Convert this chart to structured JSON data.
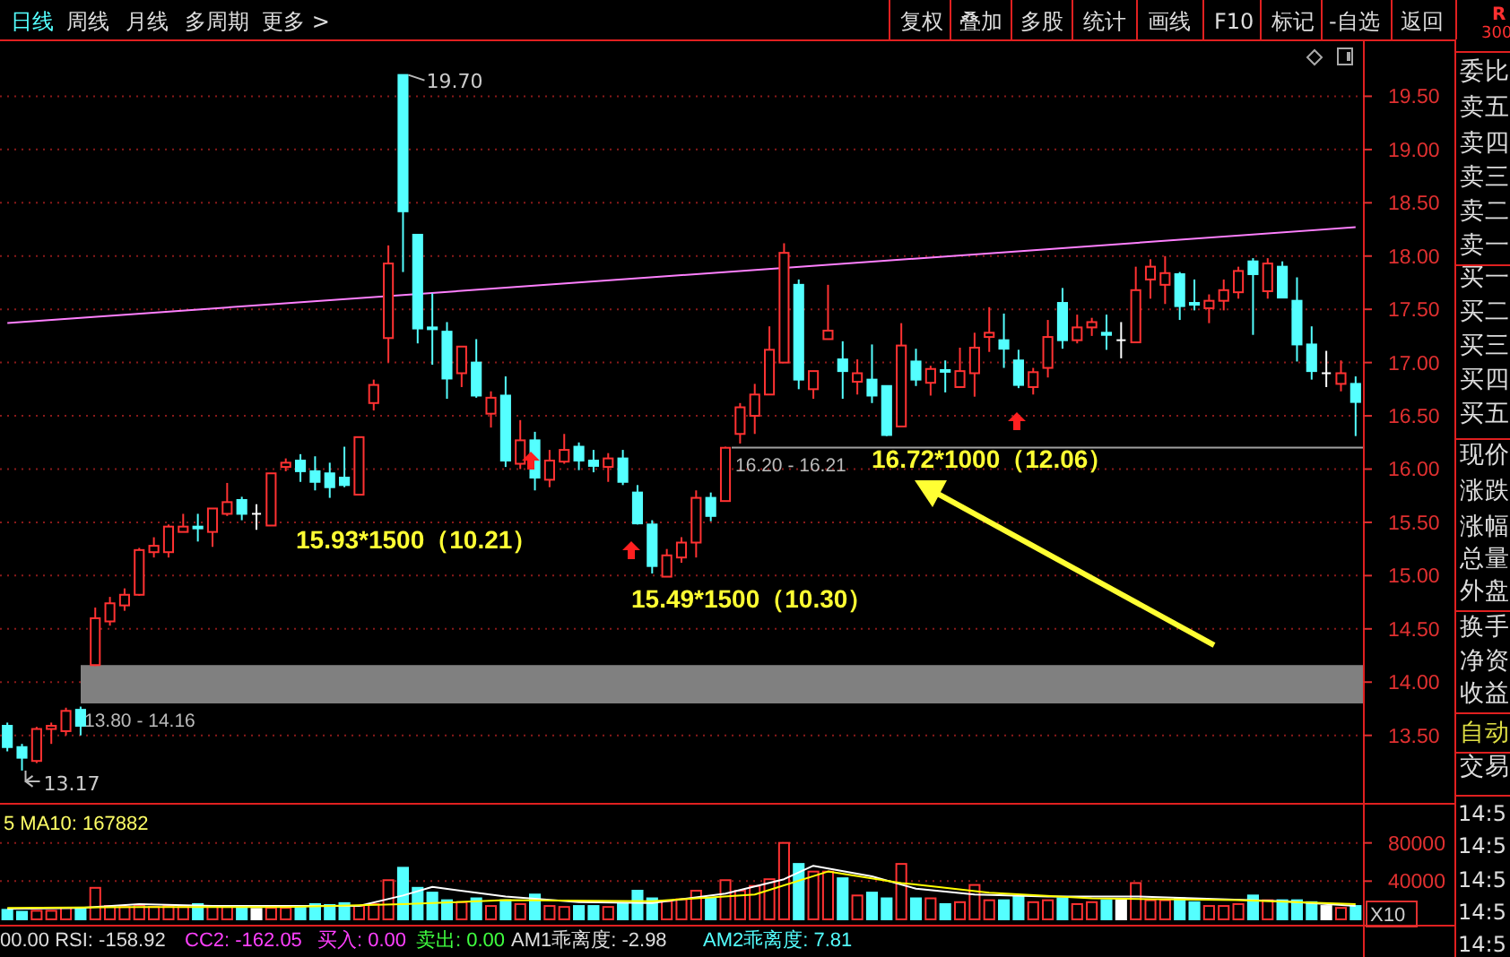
{
  "chart_data": [
    {
      "type": "candlestick",
      "categories": [
        null,
        null,
        null,
        null,
        null,
        null,
        null,
        null,
        null,
        null,
        null,
        null,
        null,
        null,
        null,
        null,
        null,
        null,
        null,
        null,
        null,
        null,
        null,
        null,
        null,
        null,
        null,
        null,
        null,
        null,
        null,
        null,
        null,
        null,
        null,
        null,
        null,
        null,
        null,
        null,
        null,
        null,
        null,
        null,
        null,
        null,
        null,
        null,
        null,
        null,
        null,
        null,
        null,
        null,
        null,
        null,
        null,
        null,
        null,
        null,
        null,
        null,
        null,
        null,
        null,
        null,
        null,
        null,
        null,
        null,
        null,
        null,
        null,
        null,
        null,
        null,
        null,
        null,
        null,
        null,
        null,
        null,
        null,
        null,
        null,
        null,
        null,
        null,
        null,
        null,
        null,
        null,
        null
      ],
      "ohlc": [
        [
          13.59,
          13.62,
          13.35,
          13.39
        ],
        [
          13.39,
          13.42,
          13.17,
          13.29
        ],
        [
          13.26,
          13.58,
          13.24,
          13.56
        ],
        [
          13.56,
          13.62,
          13.42,
          13.59
        ],
        [
          13.54,
          13.76,
          13.5,
          13.73
        ],
        [
          13.74,
          13.77,
          13.5,
          13.59
        ],
        [
          14.16,
          14.7,
          14.15,
          14.6
        ],
        [
          14.57,
          14.8,
          14.53,
          14.74
        ],
        [
          14.72,
          14.88,
          14.67,
          14.82
        ],
        [
          14.82,
          15.26,
          14.81,
          15.24
        ],
        [
          15.22,
          15.36,
          15.17,
          15.28
        ],
        [
          15.22,
          15.48,
          15.17,
          15.46
        ],
        [
          15.41,
          15.58,
          15.41,
          15.46
        ],
        [
          15.46,
          15.58,
          15.32,
          15.45
        ],
        [
          15.41,
          15.63,
          15.27,
          15.63
        ],
        [
          15.58,
          15.87,
          15.56,
          15.69
        ],
        [
          15.71,
          15.74,
          15.52,
          15.58
        ],
        [
          15.58,
          15.67,
          15.43,
          15.58
        ],
        [
          15.47,
          15.96,
          15.47,
          15.96
        ],
        [
          16.02,
          16.1,
          15.98,
          16.06
        ],
        [
          16.08,
          16.14,
          15.88,
          15.98
        ],
        [
          15.98,
          16.12,
          15.8,
          15.88
        ],
        [
          15.96,
          16.06,
          15.73,
          15.83
        ],
        [
          15.92,
          16.21,
          15.83,
          15.85
        ],
        [
          15.76,
          16.3,
          15.76,
          16.3
        ],
        [
          16.62,
          16.84,
          16.55,
          16.79
        ],
        [
          17.23,
          18.1,
          17.0,
          17.93
        ],
        [
          19.7,
          19.7,
          17.85,
          18.42
        ],
        [
          18.2,
          18.2,
          17.18,
          17.32
        ],
        [
          17.33,
          17.65,
          16.98,
          17.32
        ],
        [
          17.29,
          17.38,
          16.66,
          16.85
        ],
        [
          16.9,
          17.15,
          16.77,
          17.15
        ],
        [
          17.0,
          17.22,
          16.67,
          16.69
        ],
        [
          16.52,
          16.73,
          16.39,
          16.67
        ],
        [
          16.69,
          16.87,
          16.02,
          16.08
        ],
        [
          16.05,
          16.46,
          16.0,
          16.27
        ],
        [
          16.27,
          16.35,
          15.8,
          15.92
        ],
        [
          15.9,
          16.18,
          15.83,
          16.08
        ],
        [
          16.07,
          16.33,
          16.05,
          16.18
        ],
        [
          16.21,
          16.25,
          15.99,
          16.08
        ],
        [
          16.08,
          16.18,
          15.97,
          16.03
        ],
        [
          16.02,
          16.15,
          15.88,
          16.1
        ],
        [
          16.1,
          16.18,
          15.85,
          15.88
        ],
        [
          15.78,
          15.85,
          15.48,
          15.49
        ],
        [
          15.48,
          15.52,
          15.02,
          15.09
        ],
        [
          14.99,
          15.25,
          14.99,
          15.19
        ],
        [
          15.17,
          15.36,
          15.12,
          15.31
        ],
        [
          15.31,
          15.8,
          15.17,
          15.73
        ],
        [
          15.73,
          15.78,
          15.51,
          15.56
        ],
        [
          15.7,
          16.21,
          15.7,
          16.2
        ],
        [
          16.33,
          16.62,
          16.24,
          16.58
        ],
        [
          16.5,
          16.8,
          16.33,
          16.7
        ],
        [
          16.7,
          17.34,
          16.7,
          17.12
        ],
        [
          17.0,
          18.12,
          17.0,
          18.03
        ],
        [
          17.73,
          17.78,
          16.75,
          16.84
        ],
        [
          16.75,
          16.92,
          16.66,
          16.92
        ],
        [
          17.22,
          17.73,
          17.22,
          17.3
        ],
        [
          17.03,
          17.2,
          16.66,
          16.92
        ],
        [
          16.82,
          17.03,
          16.7,
          16.9
        ],
        [
          16.84,
          17.17,
          16.62,
          16.69
        ],
        [
          16.78,
          16.78,
          16.31,
          16.32
        ],
        [
          16.4,
          17.37,
          16.4,
          17.16
        ],
        [
          17.01,
          17.13,
          16.78,
          16.84
        ],
        [
          16.81,
          16.97,
          16.69,
          16.94
        ],
        [
          16.93,
          17.02,
          16.72,
          16.92
        ],
        [
          16.77,
          17.14,
          16.77,
          16.92
        ],
        [
          16.9,
          17.28,
          16.68,
          17.14
        ],
        [
          17.24,
          17.52,
          17.1,
          17.28
        ],
        [
          17.21,
          17.46,
          16.95,
          17.13
        ],
        [
          17.02,
          17.12,
          16.76,
          16.79
        ],
        [
          16.77,
          16.95,
          16.7,
          16.91
        ],
        [
          16.95,
          17.4,
          16.86,
          17.24
        ],
        [
          17.56,
          17.7,
          17.13,
          17.21
        ],
        [
          17.21,
          17.45,
          17.18,
          17.33
        ],
        [
          17.33,
          17.42,
          17.25,
          17.38
        ],
        [
          17.28,
          17.45,
          17.12,
          17.26
        ],
        [
          17.21,
          17.38,
          17.04,
          17.21
        ],
        [
          17.19,
          17.9,
          17.19,
          17.68
        ],
        [
          17.78,
          17.97,
          17.6,
          17.9
        ],
        [
          17.73,
          18.0,
          17.55,
          17.84
        ],
        [
          17.83,
          17.85,
          17.4,
          17.53
        ],
        [
          17.56,
          17.78,
          17.49,
          17.55
        ],
        [
          17.51,
          17.64,
          17.37,
          17.58
        ],
        [
          17.58,
          17.78,
          17.49,
          17.68
        ],
        [
          17.66,
          17.9,
          17.6,
          17.86
        ],
        [
          17.95,
          17.98,
          17.26,
          17.83
        ],
        [
          17.67,
          17.98,
          17.6,
          17.93
        ],
        [
          17.9,
          17.95,
          17.61,
          17.61
        ],
        [
          17.58,
          17.8,
          17.01,
          17.17
        ],
        [
          17.17,
          17.34,
          16.84,
          16.92
        ],
        [
          16.9,
          17.11,
          16.77,
          16.9
        ],
        [
          16.8,
          17.02,
          16.73,
          16.9
        ],
        [
          16.8,
          16.87,
          16.31,
          16.63
        ]
      ],
      "colors": [
        "#54ffff",
        "#54ffff",
        "#ff3232",
        "#ff3232",
        "#ff3232",
        "#54ffff",
        "#ff3232",
        "#ff3232",
        "#ff3232",
        "#ff3232",
        "#ff3232",
        "#ff3232",
        "#ff3232",
        "#54ffff",
        "#ff3232",
        "#ff3232",
        "#54ffff",
        "#ffffff",
        "#ff3232",
        "#ff3232",
        "#54ffff",
        "#54ffff",
        "#54ffff",
        "#54ffff",
        "#ff3232",
        "#ff3232",
        "#ff3232",
        "#54ffff",
        "#54ffff",
        "#54ffff",
        "#54ffff",
        "#ff3232",
        "#54ffff",
        "#ff3232",
        "#54ffff",
        "#ff3232",
        "#54ffff",
        "#ff3232",
        "#ff3232",
        "#54ffff",
        "#54ffff",
        "#ff3232",
        "#54ffff",
        "#54ffff",
        "#54ffff",
        "#ff3232",
        "#ff3232",
        "#ff3232",
        "#54ffff",
        "#ff3232",
        "#ff3232",
        "#ff3232",
        "#ff3232",
        "#ff3232",
        "#54ffff",
        "#ff3232",
        "#ff3232",
        "#54ffff",
        "#ff3232",
        "#54ffff",
        "#54ffff",
        "#ff3232",
        "#54ffff",
        "#ff3232",
        "#54ffff",
        "#ff3232",
        "#ff3232",
        "#ff3232",
        "#54ffff",
        "#54ffff",
        "#ff3232",
        "#ff3232",
        "#54ffff",
        "#ff3232",
        "#ff3232",
        "#54ffff",
        "#ffffff",
        "#ff3232",
        "#ff3232",
        "#ff3232",
        "#54ffff",
        "#54ffff",
        "#ff3232",
        "#ff3232",
        "#ff3232",
        "#54ffff",
        "#ff3232",
        "#54ffff",
        "#54ffff",
        "#54ffff",
        "#ffffff",
        "#ff3232",
        "#54ffff"
      ],
      "series": [
        {
          "type": "line",
          "color": "#ff80ff",
          "values": [
            17.37,
            null,
            null,
            null,
            null,
            null,
            null,
            null,
            null,
            null,
            null,
            null,
            null,
            null,
            null,
            null,
            null,
            null,
            null,
            null,
            null,
            null,
            null,
            null,
            null,
            null,
            null,
            null,
            null,
            null,
            null,
            null,
            null,
            null,
            null,
            null,
            null,
            null,
            null,
            null,
            null,
            null,
            null,
            null,
            null,
            null,
            null,
            null,
            null,
            null,
            null,
            null,
            null,
            null,
            null,
            null,
            null,
            null,
            null,
            null,
            null,
            null,
            null,
            null,
            null,
            null,
            null,
            null,
            null,
            null,
            null,
            null,
            null,
            null,
            null,
            null,
            null,
            null,
            null,
            null,
            null,
            null,
            null,
            null,
            null,
            null,
            null,
            null,
            null,
            null,
            null,
            null,
            18.27
          ]
        }
      ],
      "ylim": [
        12.9,
        20.0
      ],
      "yticks": [
        {
          "value": 13.5,
          "label": "13.50"
        },
        {
          "value": 14.0,
          "label": "14.00"
        },
        {
          "value": 14.5,
          "label": "14.50"
        },
        {
          "value": 15.0,
          "label": "15.00"
        },
        {
          "value": 15.5,
          "label": "15.50"
        },
        {
          "value": 16.0,
          "label": "16.00"
        },
        {
          "value": 16.5,
          "label": "16.50"
        },
        {
          "value": 17.0,
          "label": "17.00"
        },
        {
          "value": 17.5,
          "label": "17.50"
        },
        {
          "value": 18.0,
          "label": "18.00"
        },
        {
          "value": 18.5,
          "label": "18.50"
        },
        {
          "value": 19.0,
          "label": "19.00"
        },
        {
          "value": 19.5,
          "label": "19.50"
        }
      ],
      "grid": "y",
      "bands": [
        {
          "axis": "y",
          "from": 13.8,
          "to": 14.16,
          "label": "13.80 - 14.16",
          "color": "#808080"
        },
        {
          "axis": "y",
          "from": 16.2,
          "to": 16.21,
          "label": "16.20 - 16.21",
          "color": "#a0a0a0"
        }
      ],
      "annotations": [
        "19.70",
        "13.17",
        "15.93*1500（10.21）",
        "15.49*1500（10.30）",
        "16.72*1000（12.06）"
      ]
    },
    {
      "type": "bar",
      "categories": [
        null,
        null,
        null,
        null,
        null,
        null,
        null,
        null,
        null,
        null,
        null,
        null,
        null,
        null,
        null,
        null,
        null,
        null,
        null,
        null,
        null,
        null,
        null,
        null,
        null,
        null,
        null,
        null,
        null,
        null,
        null,
        null,
        null,
        null,
        null,
        null,
        null,
        null,
        null,
        null,
        null,
        null,
        null,
        null,
        null,
        null,
        null,
        null,
        null,
        null,
        null,
        null,
        null,
        null,
        null,
        null,
        null,
        null,
        null,
        null,
        null,
        null,
        null,
        null,
        null,
        null,
        null,
        null,
        null,
        null,
        null,
        null,
        null,
        null,
        null,
        null,
        null,
        null,
        null,
        null,
        null,
        null,
        null,
        null,
        null,
        null,
        null,
        null,
        null,
        null,
        null,
        null,
        null
      ],
      "series": [
        {
          "type": "bar",
          "colors": [
            "#54ffff",
            "#54ffff",
            "#ff3232",
            "#ff3232",
            "#ff3232",
            "#54ffff",
            "#ff3232",
            "#ff3232",
            "#ff3232",
            "#ff3232",
            "#ff3232",
            "#ff3232",
            "#ff3232",
            "#54ffff",
            "#ff3232",
            "#ff3232",
            "#54ffff",
            "#ffffff",
            "#ff3232",
            "#ff3232",
            "#54ffff",
            "#54ffff",
            "#54ffff",
            "#54ffff",
            "#ff3232",
            "#ff3232",
            "#ff3232",
            "#54ffff",
            "#54ffff",
            "#54ffff",
            "#54ffff",
            "#ff3232",
            "#54ffff",
            "#ff3232",
            "#54ffff",
            "#ff3232",
            "#54ffff",
            "#ff3232",
            "#ff3232",
            "#54ffff",
            "#54ffff",
            "#ff3232",
            "#54ffff",
            "#54ffff",
            "#54ffff",
            "#ff3232",
            "#ff3232",
            "#ff3232",
            "#54ffff",
            "#ff3232",
            "#ff3232",
            "#ff3232",
            "#ff3232",
            "#ff3232",
            "#54ffff",
            "#ff3232",
            "#ff3232",
            "#54ffff",
            "#ff3232",
            "#54ffff",
            "#54ffff",
            "#ff3232",
            "#54ffff",
            "#ff3232",
            "#54ffff",
            "#ff3232",
            "#ff3232",
            "#ff3232",
            "#54ffff",
            "#54ffff",
            "#ff3232",
            "#ff3232",
            "#54ffff",
            "#ff3232",
            "#ff3232",
            "#54ffff",
            "#ffffff",
            "#ff3232",
            "#ff3232",
            "#ff3232",
            "#54ffff",
            "#54ffff",
            "#ff3232",
            "#ff3232",
            "#ff3232",
            "#54ffff",
            "#ff3232",
            "#54ffff",
            "#54ffff",
            "#54ffff",
            "#ffffff",
            "#ff3232",
            "#54ffff"
          ],
          "values": [
            10000,
            8000,
            9000,
            9000,
            12000,
            12000,
            33000,
            14000,
            13000,
            15000,
            13000,
            14000,
            13000,
            16000,
            14000,
            13000,
            12000,
            11000,
            12000,
            12000,
            13000,
            16000,
            15000,
            17000,
            14000,
            16000,
            41000,
            54000,
            33000,
            28000,
            20000,
            18000,
            22000,
            14000,
            20000,
            16000,
            26000,
            14000,
            13000,
            14000,
            14000,
            13000,
            17000,
            30000,
            22000,
            19000,
            21000,
            30000,
            22000,
            41000,
            30000,
            35000,
            42000,
            80000,
            58000,
            50000,
            50000,
            43000,
            25000,
            28000,
            22000,
            58000,
            22000,
            22000,
            16000,
            18000,
            36000,
            20000,
            20000,
            24000,
            18000,
            20000,
            22000,
            16000,
            18000,
            20000,
            20000,
            38000,
            20000,
            20000,
            22000,
            18000,
            14000,
            14000,
            16000,
            25000,
            20000,
            20000,
            20000,
            18000,
            14000,
            12000,
            14000
          ]
        },
        {
          "type": "line",
          "color": "#ffffff",
          "values": [
            11000,
            null,
            null,
            null,
            null,
            12000,
            null,
            null,
            null,
            16000,
            null,
            null,
            null,
            null,
            14000,
            null,
            null,
            null,
            null,
            null,
            null,
            null,
            null,
            null,
            14000,
            null,
            null,
            25000,
            null,
            34000,
            null,
            null,
            null,
            null,
            24000,
            null,
            null,
            null,
            null,
            18000,
            null,
            null,
            null,
            null,
            17000,
            null,
            null,
            null,
            null,
            27000,
            null,
            null,
            null,
            42000,
            null,
            56000,
            null,
            null,
            null,
            45000,
            null,
            null,
            32000,
            null,
            null,
            null,
            26000,
            null,
            null,
            null,
            null,
            24000,
            null,
            null,
            null,
            null,
            null,
            24000,
            null,
            null,
            null,
            null,
            null,
            null,
            null,
            null,
            null,
            19000,
            null,
            null,
            null,
            null,
            14000
          ]
        },
        {
          "type": "line",
          "color": "#ffff00",
          "values": [
            12000,
            null,
            null,
            null,
            null,
            null,
            null,
            null,
            null,
            13000,
            null,
            null,
            null,
            null,
            null,
            null,
            null,
            null,
            null,
            13000,
            null,
            null,
            null,
            null,
            null,
            null,
            null,
            16000,
            null,
            null,
            null,
            null,
            null,
            null,
            20000,
            null,
            null,
            null,
            null,
            null,
            null,
            null,
            null,
            null,
            19000,
            null,
            null,
            null,
            null,
            null,
            null,
            26000,
            null,
            null,
            null,
            null,
            50000,
            null,
            null,
            null,
            null,
            38000,
            null,
            null,
            null,
            null,
            null,
            28000,
            null,
            null,
            null,
            null,
            null,
            null,
            22000,
            null,
            null,
            null,
            null,
            null,
            null,
            null,
            null,
            null,
            20000,
            null,
            null,
            null,
            null,
            null,
            null,
            null,
            16000
          ]
        }
      ],
      "ylim": [
        0,
        120000
      ],
      "yticks": [
        40000,
        80000
      ],
      "grid": "y",
      "annotations": [
        "5 MA10: 167882",
        "00.00 RSI: -158.92",
        "CC2: -162.05",
        "买入: 0.00",
        "卖出: 0.00",
        "AM1乖离度: -2.98",
        "AM2乖离度: 7.81",
        "X10"
      ]
    },
    {
      "type": "other",
      "annotations": [
        "日线",
        "周线",
        "月线",
        "多周期",
        "更多 >",
        "复权",
        "叠加",
        "多股",
        "统计",
        "画线",
        "F10",
        "标记",
        "-自选",
        "返回",
        "委比",
        "卖五",
        "卖四",
        "卖三",
        "卖二",
        "卖一",
        "买一",
        "买二",
        "买三",
        "买四",
        "买五",
        "现价",
        "涨跌",
        "涨幅",
        "总量",
        "外盘",
        "换手",
        "净资",
        "收益",
        "自动",
        "交易",
        "14:5",
        "14:5",
        "14:5",
        "14:5",
        "14:5",
        "R",
        "300"
      ]
    }
  ]
}
